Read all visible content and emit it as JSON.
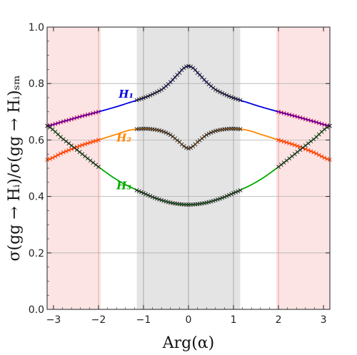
{
  "chart_data": {
    "type": "line",
    "xlabel": "Arg(α)",
    "ylabel": "σ(gg → Hᵢ)/σ(gg → Hᵢ)ₛₘ",
    "xlim": [
      -3.14159,
      3.14159
    ],
    "ylim": [
      0.0,
      1.0
    ],
    "xticks": [
      "−3",
      "−2",
      "−1",
      "0",
      "1",
      "2",
      "3"
    ],
    "xtick_values": [
      -3,
      -2,
      -1,
      0,
      1,
      2,
      3
    ],
    "yticks": [
      "0.0",
      "0.2",
      "0.4",
      "0.6",
      "0.8",
      "1.0"
    ],
    "ytick_values": [
      0.0,
      0.2,
      0.4,
      0.6,
      0.8,
      1.0
    ],
    "grid": true,
    "regions": [
      {
        "from": -3.14159,
        "to": -1.95,
        "color": "#fde4e4"
      },
      {
        "from": 1.95,
        "to": 3.14159,
        "color": "#fde4e4"
      },
      {
        "from": -1.15,
        "to": 1.15,
        "color": "#e4e4e4"
      }
    ],
    "vlines": [
      -2,
      -1,
      0,
      1,
      2
    ],
    "series": [
      {
        "name": "H₁",
        "color": "#0000dd",
        "x": [
          -3.14,
          -2.8,
          -2.4,
          -2.0,
          -1.6,
          -1.2,
          -0.9,
          -0.6,
          -0.4,
          -0.2,
          -0.1,
          0.0,
          0.1,
          0.2,
          0.4,
          0.6,
          0.9,
          1.2,
          1.6,
          2.0,
          2.4,
          2.8,
          3.14
        ],
        "values": [
          0.65,
          0.665,
          0.683,
          0.7,
          0.718,
          0.738,
          0.755,
          0.778,
          0.805,
          0.838,
          0.855,
          0.862,
          0.855,
          0.838,
          0.805,
          0.778,
          0.755,
          0.738,
          0.718,
          0.7,
          0.683,
          0.665,
          0.65
        ]
      },
      {
        "name": "H₂",
        "color": "#ff8800",
        "x": [
          -3.14,
          -2.8,
          -2.4,
          -2.0,
          -1.6,
          -1.3,
          -1.0,
          -0.8,
          -0.6,
          -0.4,
          -0.2,
          -0.1,
          0.0,
          0.1,
          0.2,
          0.4,
          0.6,
          0.8,
          1.0,
          1.3,
          1.6,
          2.0,
          2.4,
          2.8,
          3.14
        ],
        "values": [
          0.53,
          0.555,
          0.58,
          0.6,
          0.62,
          0.635,
          0.64,
          0.638,
          0.632,
          0.618,
          0.593,
          0.578,
          0.57,
          0.578,
          0.593,
          0.618,
          0.632,
          0.638,
          0.64,
          0.635,
          0.62,
          0.6,
          0.58,
          0.555,
          0.53
        ]
      },
      {
        "name": "H₃",
        "color": "#00aa00",
        "x": [
          -3.14,
          -2.8,
          -2.4,
          -2.0,
          -1.6,
          -1.2,
          -1.0,
          -0.8,
          -0.6,
          -0.4,
          -0.2,
          0.0,
          0.2,
          0.4,
          0.6,
          0.8,
          1.0,
          1.2,
          1.6,
          2.0,
          2.4,
          2.8,
          3.14
        ],
        "values": [
          0.65,
          0.605,
          0.555,
          0.505,
          0.46,
          0.427,
          0.412,
          0.398,
          0.387,
          0.378,
          0.373,
          0.371,
          0.373,
          0.378,
          0.387,
          0.398,
          0.412,
          0.427,
          0.46,
          0.505,
          0.555,
          0.605,
          0.65
        ]
      }
    ],
    "labels": [
      {
        "text": "H₁",
        "x": -1.55,
        "y": 0.75,
        "color": "#0000dd"
      },
      {
        "text": "H₂",
        "x": -1.6,
        "y": 0.595,
        "color": "#ff8800"
      },
      {
        "text": "H₃",
        "x": -1.6,
        "y": 0.425,
        "color": "#00aa00"
      }
    ]
  }
}
